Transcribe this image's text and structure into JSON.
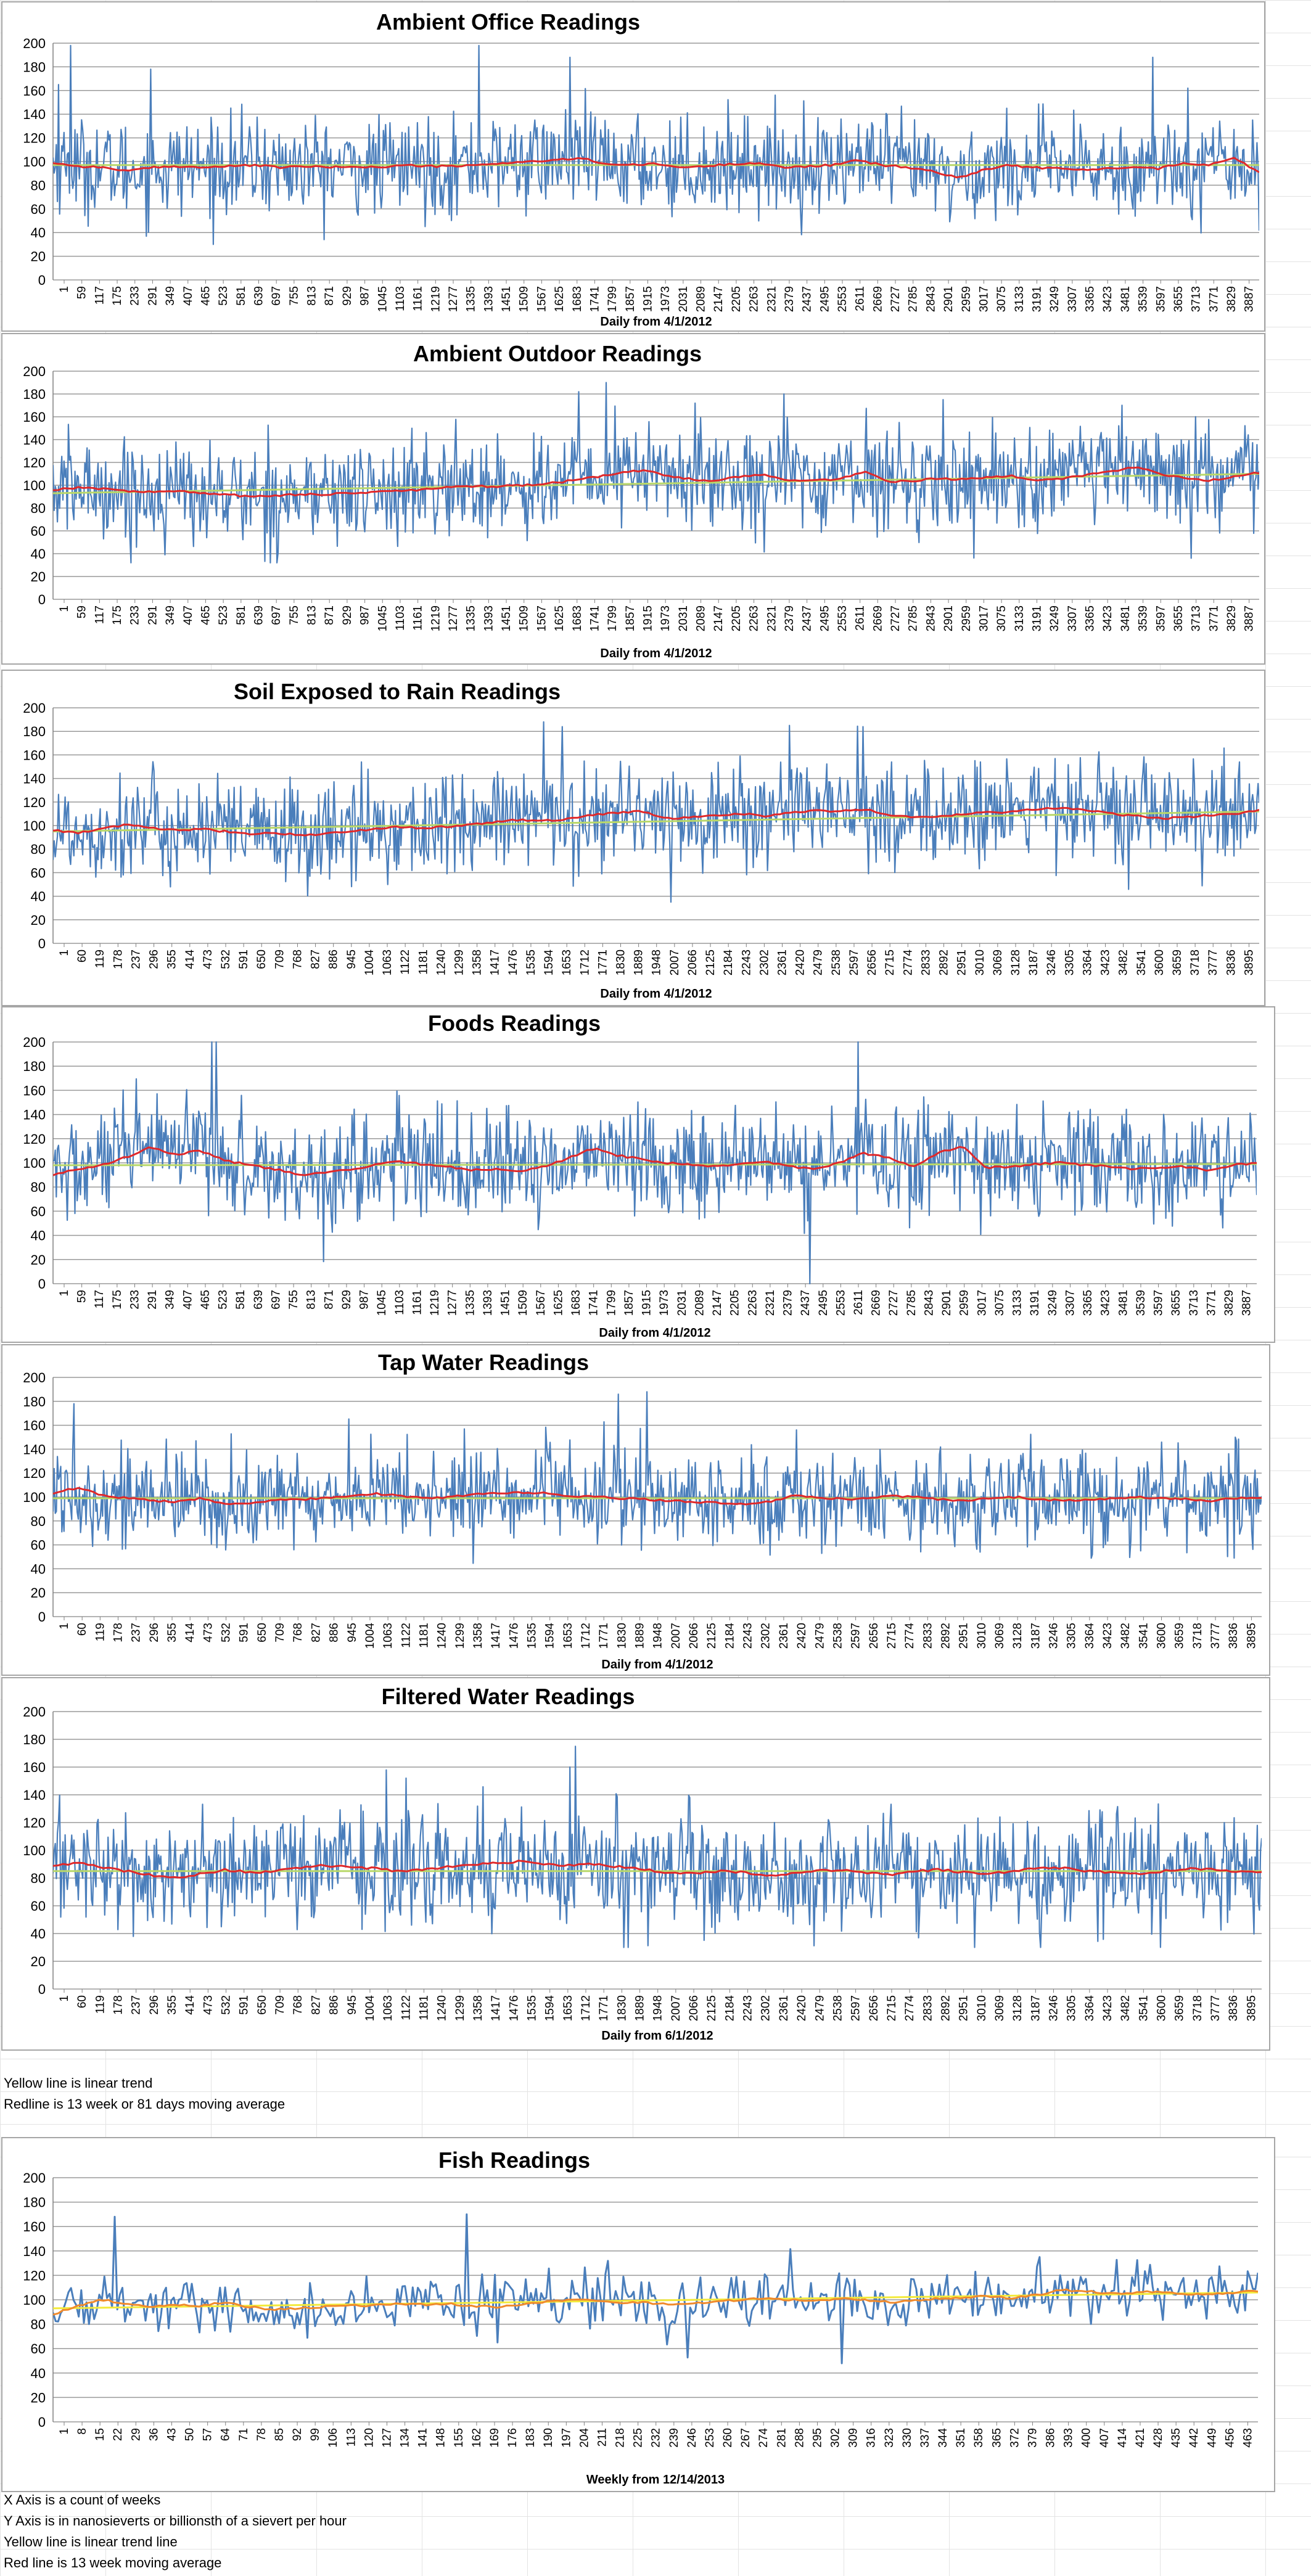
{
  "colors": {
    "data_series": "#4a7ebb",
    "moving_average": "#e0282a",
    "moving_average_fish": "#f08a2c",
    "linear_trend": "#b9d86a",
    "linear_trend_fish": "#f3ea3a",
    "gridline": "#9a9a9a",
    "border": "#a6a6a6"
  },
  "notes_daily": [
    "Yellow line is linear trend",
    "Redline is 13 week or 81 days moving average"
  ],
  "notes_weekly": [
    "X Axis is a count of weeks",
    "Y Axis is in nanosieverts or billionsth of a sievert per hour",
    "Yellow line is linear trend line",
    "Red line is 13 week moving average"
  ],
  "chart_data": [
    {
      "id": "office",
      "type": "line",
      "title": "Ambient Office Readings",
      "xlabel": "Daily from 4/1/2012",
      "ylabel": "",
      "ylim": [
        0,
        200
      ],
      "yticks": [
        0,
        20,
        40,
        60,
        80,
        100,
        120,
        140,
        160,
        180,
        200
      ],
      "grid": true,
      "legend": "none",
      "x_range": [
        1,
        3945
      ],
      "x_tick_labels": [
        1,
        59,
        117,
        175,
        233,
        291,
        349,
        407,
        465,
        523,
        581,
        639,
        697,
        755,
        813,
        871,
        929,
        987,
        1045,
        1103,
        1161,
        1219,
        1277,
        1335,
        1393,
        1451,
        1509,
        1567,
        1625,
        1683,
        1741,
        1799,
        1857,
        1915,
        1973,
        2031,
        2089,
        2147,
        2205,
        2263,
        2321,
        2379,
        2437,
        2495,
        2553,
        2611,
        2669,
        2727,
        2785,
        2843,
        2901,
        2959,
        3017,
        3075,
        3133,
        3191,
        3249,
        3307,
        3365,
        3423,
        3481,
        3539,
        3597,
        3655,
        3713,
        3771,
        3829,
        3887
      ],
      "series_summary": {
        "mean": 96,
        "spread": 20,
        "min": 30,
        "max": 198
      },
      "trend": [
        97,
        97
      ],
      "moving_average": [
        99,
        96,
        95,
        92,
        95,
        96,
        95,
        96,
        97,
        95,
        96,
        95,
        96,
        95,
        97,
        96,
        96,
        97,
        99,
        100,
        101,
        103,
        98,
        97,
        98,
        95,
        96,
        98,
        99,
        95,
        96,
        97,
        101,
        97,
        95,
        92,
        86,
        93,
        97,
        95,
        94,
        93,
        94,
        96,
        94,
        99,
        97,
        103,
        91
      ],
      "peaks": [
        [
          20,
          165
        ],
        [
          59,
          198
        ],
        [
          320,
          178
        ],
        [
          1393,
          198
        ],
        [
          1690,
          188
        ],
        [
          3597,
          188
        ],
        [
          3713,
          162
        ]
      ]
    },
    {
      "id": "outdoor",
      "type": "line",
      "title": "Ambient Outdoor Readings",
      "xlabel": "Daily from 4/1/2012",
      "ylabel": "",
      "ylim": [
        0,
        200
      ],
      "yticks": [
        0,
        20,
        40,
        60,
        80,
        100,
        120,
        140,
        160,
        180,
        200
      ],
      "grid": true,
      "legend": "none",
      "x_range": [
        1,
        3945
      ],
      "x_tick_labels": [
        1,
        59,
        117,
        175,
        233,
        291,
        349,
        407,
        465,
        523,
        581,
        639,
        697,
        755,
        813,
        871,
        929,
        987,
        1045,
        1103,
        1161,
        1219,
        1277,
        1335,
        1393,
        1451,
        1509,
        1567,
        1625,
        1683,
        1741,
        1799,
        1857,
        1915,
        1973,
        2031,
        2089,
        2147,
        2205,
        2263,
        2321,
        2379,
        2437,
        2495,
        2553,
        2611,
        2669,
        2727,
        2785,
        2843,
        2901,
        2959,
        3017,
        3075,
        3133,
        3191,
        3249,
        3307,
        3365,
        3423,
        3481,
        3539,
        3597,
        3655,
        3713,
        3771,
        3829,
        3887
      ],
      "series_summary": {
        "mean": 100,
        "spread": 22,
        "min": 32,
        "max": 190
      },
      "trend": [
        93,
        110
      ],
      "moving_average": [
        96,
        98,
        97,
        95,
        94,
        95,
        93,
        92,
        90,
        91,
        92,
        92,
        93,
        94,
        95,
        96,
        98,
        99,
        99,
        100,
        101,
        104,
        107,
        111,
        113,
        108,
        105,
        104,
        108,
        109,
        104,
        104,
        106,
        112,
        103,
        104,
        106,
        105,
        107,
        108,
        104,
        106,
        109,
        112,
        116,
        110,
        106,
        104,
        108,
        111
      ],
      "peaks": [
        [
          1810,
          190
        ],
        [
          1720,
          182
        ],
        [
          2390,
          180
        ],
        [
          2100,
          172
        ]
      ]
    },
    {
      "id": "soil",
      "type": "line",
      "title": "Soil Exposed to Rain Readings",
      "xlabel": "Daily from 4/1/2012",
      "ylabel": "",
      "ylim": [
        0,
        200
      ],
      "yticks": [
        0,
        20,
        40,
        60,
        80,
        100,
        120,
        140,
        160,
        180,
        200
      ],
      "grid": true,
      "legend": "none",
      "x_range": [
        1,
        3930
      ],
      "x_tick_labels": [
        1,
        60,
        119,
        178,
        237,
        296,
        355,
        414,
        473,
        532,
        591,
        650,
        709,
        768,
        827,
        886,
        945,
        1004,
        1063,
        1122,
        1181,
        1240,
        1299,
        1358,
        1417,
        1476,
        1535,
        1594,
        1653,
        1712,
        1771,
        1830,
        1889,
        1948,
        2007,
        2066,
        2125,
        2184,
        2243,
        2302,
        2361,
        2420,
        2479,
        2538,
        2597,
        2656,
        2715,
        2774,
        2833,
        2892,
        2951,
        3010,
        3069,
        3128,
        3187,
        3246,
        3305,
        3364,
        3423,
        3482,
        3541,
        3600,
        3659,
        3718,
        3777,
        3836,
        3895
      ],
      "series_summary": {
        "mean": 104,
        "spread": 22,
        "min": 35,
        "max": 188
      },
      "trend": [
        95,
        112
      ],
      "moving_average": [
        96,
        94,
        97,
        101,
        98,
        96,
        97,
        95,
        93,
        94,
        92,
        93,
        95,
        97,
        99,
        98,
        99,
        101,
        103,
        105,
        104,
        106,
        109,
        111,
        112,
        106,
        107,
        109,
        110,
        108,
        111,
        113,
        112,
        114,
        109,
        107,
        108,
        110,
        111,
        112,
        114,
        115,
        113,
        110,
        108,
        106,
        107,
        109,
        110,
        113
      ],
      "peaks": [
        [
          1600,
          188
        ],
        [
          1660,
          184
        ],
        [
          2400,
          185
        ],
        [
          2640,
          184
        ]
      ]
    },
    {
      "id": "foods",
      "type": "line",
      "title": "Foods Readings",
      "xlabel": "Daily from 4/1/2012",
      "ylabel": "",
      "ylim": [
        0,
        200
      ],
      "yticks": [
        0,
        20,
        40,
        60,
        80,
        100,
        120,
        140,
        160,
        180,
        200
      ],
      "grid": true,
      "legend": "none",
      "x_range": [
        1,
        3945
      ],
      "x_tick_labels": [
        1,
        59,
        117,
        175,
        233,
        291,
        349,
        407,
        465,
        523,
        581,
        639,
        697,
        755,
        813,
        871,
        929,
        987,
        1045,
        1103,
        1161,
        1219,
        1277,
        1335,
        1393,
        1451,
        1509,
        1567,
        1625,
        1683,
        1741,
        1799,
        1857,
        1915,
        1973,
        2031,
        2089,
        2147,
        2205,
        2263,
        2321,
        2379,
        2437,
        2495,
        2553,
        2611,
        2669,
        2727,
        2785,
        2843,
        2901,
        2959,
        3017,
        3075,
        3133,
        3191,
        3249,
        3307,
        3365,
        3423,
        3481,
        3539,
        3597,
        3655,
        3713,
        3771,
        3829,
        3887
      ],
      "series_summary": {
        "mean": 98,
        "spread": 22,
        "min": 0,
        "max": 200
      },
      "trend": [
        98,
        99
      ],
      "moving_average": [
        90,
        95,
        98,
        105,
        113,
        107,
        110,
        102,
        98,
        95,
        90,
        92,
        94,
        98,
        101,
        99,
        97,
        94,
        95,
        93,
        97,
        104,
        112,
        106,
        103,
        100,
        98,
        97,
        99,
        101,
        97,
        95,
        100,
        108,
        104,
        97,
        108,
        114,
        96,
        97,
        99,
        100,
        98,
        97,
        95,
        96,
        97,
        94,
        98,
        100
      ],
      "peaks": [
        [
          520,
          200
        ],
        [
          535,
          200
        ],
        [
          2480,
          0
        ],
        [
          2640,
          200
        ]
      ]
    },
    {
      "id": "tap",
      "type": "line",
      "title": "Tap Water Readings",
      "xlabel": "Daily from 4/1/2012",
      "ylabel": "",
      "ylim": [
        0,
        200
      ],
      "yticks": [
        0,
        20,
        40,
        60,
        80,
        100,
        120,
        140,
        160,
        180,
        200
      ],
      "grid": true,
      "legend": "none",
      "x_range": [
        1,
        3930
      ],
      "x_tick_labels": [
        1,
        60,
        119,
        178,
        237,
        296,
        355,
        414,
        473,
        532,
        591,
        650,
        709,
        768,
        827,
        886,
        945,
        1004,
        1063,
        1122,
        1181,
        1240,
        1299,
        1358,
        1417,
        1476,
        1535,
        1594,
        1653,
        1712,
        1771,
        1830,
        1889,
        1948,
        2007,
        2066,
        2125,
        2184,
        2243,
        2302,
        2361,
        2420,
        2479,
        2538,
        2597,
        2656,
        2715,
        2774,
        2833,
        2892,
        2951,
        3010,
        3069,
        3128,
        3187,
        3246,
        3305,
        3364,
        3423,
        3482,
        3541,
        3600,
        3659,
        3718,
        3777,
        3836,
        3895
      ],
      "series_summary": {
        "mean": 99,
        "spread": 20,
        "min": 40,
        "max": 190
      },
      "trend": [
        99,
        99
      ],
      "moving_average": [
        103,
        108,
        101,
        99,
        97,
        96,
        99,
        94,
        95,
        97,
        98,
        99,
        101,
        103,
        101,
        99,
        100,
        102,
        103,
        104,
        103,
        101,
        100,
        99,
        98,
        97,
        96,
        95,
        94,
        96,
        101,
        100,
        98,
        99,
        101,
        100,
        98,
        97,
        99,
        100,
        98,
        97,
        98,
        99,
        100,
        99,
        98,
        97,
        99,
        100
      ],
      "peaks": [
        [
          70,
          178
        ],
        [
          1840,
          186
        ],
        [
          1930,
          188
        ]
      ]
    },
    {
      "id": "filtered",
      "type": "line",
      "title": "Filtered Water Readings",
      "xlabel": "Daily from 6/1/2012",
      "ylabel": "",
      "ylim": [
        0,
        200
      ],
      "yticks": [
        0,
        20,
        40,
        60,
        80,
        100,
        120,
        140,
        160,
        180,
        200
      ],
      "grid": true,
      "legend": "none",
      "x_range": [
        1,
        3930
      ],
      "x_tick_labels": [
        1,
        60,
        119,
        178,
        237,
        296,
        355,
        414,
        473,
        532,
        591,
        650,
        709,
        768,
        827,
        886,
        945,
        1004,
        1063,
        1122,
        1181,
        1240,
        1299,
        1358,
        1417,
        1476,
        1535,
        1594,
        1653,
        1712,
        1771,
        1830,
        1889,
        1948,
        2007,
        2066,
        2125,
        2184,
        2243,
        2302,
        2361,
        2420,
        2479,
        2538,
        2597,
        2656,
        2715,
        2774,
        2833,
        2892,
        2951,
        3010,
        3069,
        3128,
        3187,
        3246,
        3305,
        3364,
        3423,
        3482,
        3541,
        3600,
        3659,
        3718,
        3777,
        3836,
        3895
      ],
      "series_summary": {
        "mean": 86,
        "spread": 20,
        "min": 30,
        "max": 175
      },
      "trend": [
        85,
        85
      ],
      "moving_average": [
        89,
        91,
        88,
        85,
        82,
        80,
        83,
        86,
        84,
        85,
        87,
        89,
        88,
        87,
        85,
        86,
        88,
        90,
        91,
        92,
        90,
        89,
        90,
        88,
        86,
        84,
        83,
        85,
        84,
        82,
        83,
        85,
        86,
        84,
        82,
        85,
        86,
        84,
        83,
        85,
        88,
        87,
        85,
        84,
        83,
        85,
        87,
        86,
        85,
        84
      ],
      "peaks": [
        [
          1700,
          175
        ],
        [
          1680,
          160
        ],
        [
          1150,
          152
        ]
      ]
    },
    {
      "id": "fish",
      "type": "line",
      "title": "Fish Readings",
      "xlabel": "Weekly from 12/14/2013",
      "ylabel": "",
      "ylim": [
        0,
        200
      ],
      "yticks": [
        0,
        20,
        40,
        60,
        80,
        100,
        120,
        140,
        160,
        180,
        200
      ],
      "grid": true,
      "legend": "none",
      "x_range": [
        1,
        470
      ],
      "x_tick_labels": [
        1,
        8,
        15,
        22,
        29,
        36,
        43,
        50,
        57,
        64,
        71,
        78,
        85,
        92,
        99,
        106,
        113,
        120,
        127,
        134,
        141,
        148,
        155,
        162,
        169,
        176,
        183,
        190,
        197,
        204,
        211,
        218,
        225,
        232,
        239,
        246,
        253,
        260,
        267,
        274,
        281,
        288,
        295,
        302,
        309,
        316,
        323,
        330,
        337,
        344,
        351,
        358,
        365,
        372,
        379,
        386,
        393,
        400,
        407,
        414,
        421,
        428,
        435,
        442,
        449,
        456,
        463
      ],
      "series_summary": {
        "mean": 100,
        "spread": 14,
        "min": 48,
        "max": 170
      },
      "trend": [
        93,
        106
      ],
      "moving_average": [
        88,
        95,
        100,
        97,
        94,
        96,
        95,
        98,
        94,
        92,
        93,
        94,
        96,
        95,
        97,
        96,
        97,
        95,
        94,
        96,
        98,
        100,
        99,
        97,
        98,
        96,
        97,
        99,
        100,
        101,
        100,
        99,
        101,
        100,
        98,
        99,
        101,
        102,
        103,
        101,
        104,
        108,
        107,
        105,
        106,
        107,
        105,
        104,
        106,
        107
      ],
      "peaks": [
        [
          25,
          168
        ],
        [
          162,
          170
        ],
        [
          308,
          48
        ],
        [
          385,
          135
        ]
      ]
    }
  ]
}
